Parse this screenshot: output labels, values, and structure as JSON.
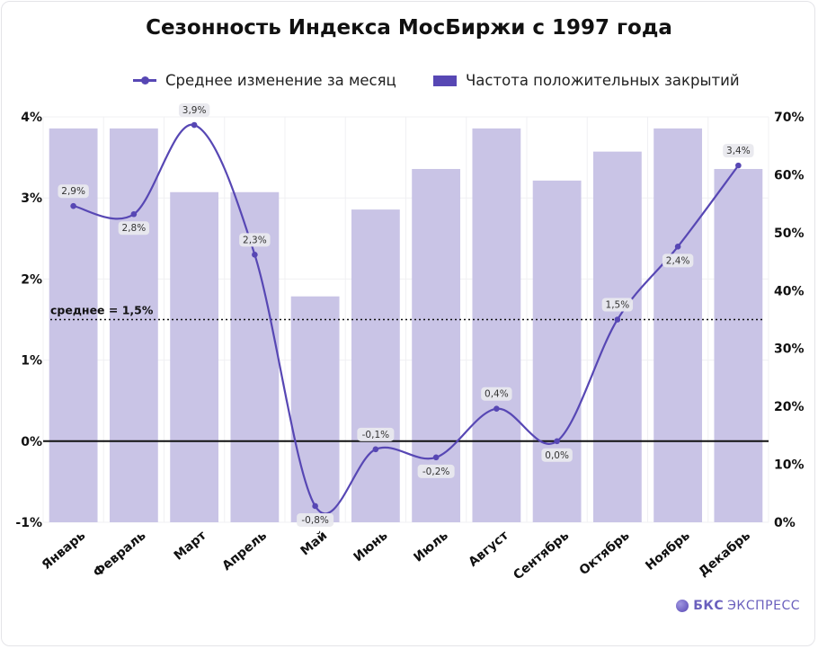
{
  "title": "Сезонность Индекса МосБиржи с 1997 года",
  "legend": {
    "line_label": "Среднее изменение за месяц",
    "bar_label": "Частота положительных закрытий"
  },
  "brand": {
    "name_bold": "БКС",
    "name_rest": "ЭКСПРЕСС"
  },
  "colors": {
    "accent": "#5747b4",
    "bar": "#c9c4e6",
    "label_box": "#e9e9ee"
  },
  "chart_data": {
    "type": "bar+line",
    "categories": [
      "Январь",
      "Февраль",
      "Март",
      "Апрель",
      "Май",
      "Июнь",
      "Июль",
      "Август",
      "Сентябрь",
      "Октябрь",
      "Ноябрь",
      "Декабрь"
    ],
    "series": [
      {
        "name": "Среднее изменение за месяц",
        "type": "line",
        "axis": "left",
        "values": [
          2.9,
          2.8,
          3.9,
          2.3,
          -0.8,
          -0.1,
          -0.2,
          0.4,
          0.0,
          1.5,
          2.4,
          3.4
        ],
        "labels": [
          "2,9%",
          "2,8%",
          "3,9%",
          "2,3%",
          "-0,8%",
          "-0,1%",
          "-0,2%",
          "0,4%",
          "0,0%",
          "1,5%",
          "2,4%",
          "3,4%"
        ]
      },
      {
        "name": "Частота положительных закрытий",
        "type": "bar",
        "axis": "right",
        "values": [
          68,
          68,
          57,
          57,
          39,
          54,
          61,
          68,
          59,
          64,
          68,
          61
        ]
      }
    ],
    "left_axis": {
      "range": [
        -1,
        4
      ],
      "ticks": [
        4,
        3,
        2,
        1,
        0,
        -1
      ],
      "tick_labels": [
        "4%",
        "3%",
        "2%",
        "1%",
        "0%",
        "-1%"
      ]
    },
    "right_axis": {
      "range": [
        0,
        70
      ],
      "ticks": [
        70,
        60,
        50,
        40,
        30,
        20,
        10,
        0
      ],
      "tick_labels": [
        "70%",
        "60%",
        "50%",
        "40%",
        "30%",
        "20%",
        "10%",
        "0%"
      ]
    },
    "average": {
      "value": 1.5,
      "label": "среднее = 1,5%"
    },
    "zero_line": 0
  }
}
